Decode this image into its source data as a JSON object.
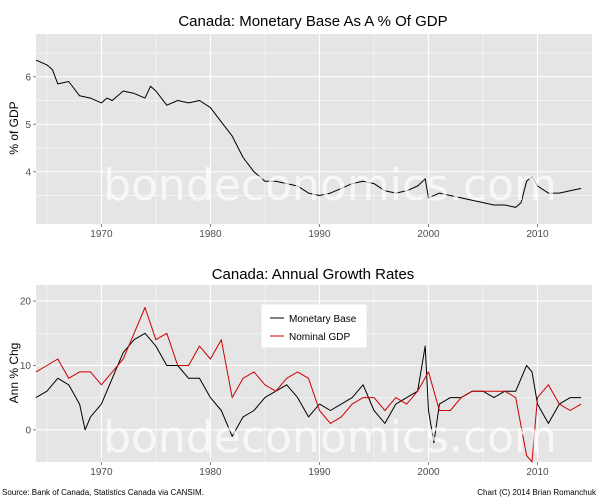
{
  "watermark": "bondeconomics.com",
  "footer": {
    "source": "Source: Bank of Canada, Statistics Canada via CANSIM.",
    "credit": "Chart (C) 2014 Brian Romanchuk"
  },
  "colors": {
    "panel_bg": "#e5e5e5",
    "grid": "#ffffff",
    "monetary_base": "#000000",
    "nominal_gdp": "#cc0000"
  },
  "chart_data": [
    {
      "type": "line",
      "title": "Canada: Monetary Base As A % Of GDP",
      "xlabel": "",
      "ylabel": "% of GDP",
      "xlim": [
        1964,
        2015
      ],
      "ylim": [
        2.9,
        6.9
      ],
      "xticks": [
        1970,
        1980,
        1990,
        2000,
        2010
      ],
      "yticks": [
        4,
        5,
        6
      ],
      "grid": true,
      "series": [
        {
          "name": "Monetary Base % of GDP",
          "color": "#000000",
          "points": [
            [
              1964.0,
              6.35
            ],
            [
              1965.0,
              6.25
            ],
            [
              1965.5,
              6.15
            ],
            [
              1966.0,
              5.85
            ],
            [
              1967.0,
              5.9
            ],
            [
              1968.0,
              5.6
            ],
            [
              1969.0,
              5.55
            ],
            [
              1970.0,
              5.45
            ],
            [
              1970.5,
              5.55
            ],
            [
              1971.0,
              5.5
            ],
            [
              1972.0,
              5.7
            ],
            [
              1973.0,
              5.65
            ],
            [
              1974.0,
              5.55
            ],
            [
              1974.5,
              5.8
            ],
            [
              1975.0,
              5.7
            ],
            [
              1976.0,
              5.4
            ],
            [
              1977.0,
              5.5
            ],
            [
              1978.0,
              5.45
            ],
            [
              1979.0,
              5.5
            ],
            [
              1980.0,
              5.35
            ],
            [
              1981.0,
              5.05
            ],
            [
              1982.0,
              4.75
            ],
            [
              1983.0,
              4.3
            ],
            [
              1984.0,
              4.0
            ],
            [
              1985.0,
              3.8
            ],
            [
              1986.0,
              3.8
            ],
            [
              1987.0,
              3.75
            ],
            [
              1988.0,
              3.7
            ],
            [
              1989.0,
              3.55
            ],
            [
              1990.0,
              3.5
            ],
            [
              1991.0,
              3.55
            ],
            [
              1992.0,
              3.65
            ],
            [
              1993.0,
              3.75
            ],
            [
              1994.0,
              3.8
            ],
            [
              1995.0,
              3.75
            ],
            [
              1996.0,
              3.6
            ],
            [
              1997.0,
              3.55
            ],
            [
              1998.0,
              3.6
            ],
            [
              1999.0,
              3.7
            ],
            [
              1999.7,
              3.85
            ],
            [
              2000.0,
              3.45
            ],
            [
              2001.0,
              3.55
            ],
            [
              2002.0,
              3.5
            ],
            [
              2003.0,
              3.45
            ],
            [
              2004.0,
              3.4
            ],
            [
              2005.0,
              3.35
            ],
            [
              2006.0,
              3.3
            ],
            [
              2007.0,
              3.3
            ],
            [
              2008.0,
              3.25
            ],
            [
              2008.5,
              3.35
            ],
            [
              2009.0,
              3.8
            ],
            [
              2009.5,
              3.9
            ],
            [
              2010.0,
              3.7
            ],
            [
              2011.0,
              3.55
            ],
            [
              2012.0,
              3.55
            ],
            [
              2013.0,
              3.6
            ],
            [
              2014.0,
              3.65
            ]
          ]
        }
      ]
    },
    {
      "type": "line",
      "title": "Canada: Annual Growth Rates",
      "xlabel": "",
      "ylabel": "Ann % Chg",
      "xlim": [
        1964,
        2015
      ],
      "ylim": [
        -5,
        22.5
      ],
      "xticks": [
        1970,
        1980,
        1990,
        2000,
        2010
      ],
      "yticks": [
        0,
        10,
        20
      ],
      "grid": true,
      "legend": {
        "position": "top-center",
        "entries": [
          "Monetary Base",
          "Nominal GDP"
        ]
      },
      "series": [
        {
          "name": "Monetary Base",
          "color": "#000000",
          "points": [
            [
              1964.0,
              5
            ],
            [
              1965.0,
              6
            ],
            [
              1966.0,
              8
            ],
            [
              1967.0,
              7
            ],
            [
              1968.0,
              4
            ],
            [
              1968.5,
              0
            ],
            [
              1969.0,
              2
            ],
            [
              1970.0,
              4
            ],
            [
              1971.0,
              8
            ],
            [
              1972.0,
              12
            ],
            [
              1973.0,
              14
            ],
            [
              1974.0,
              15
            ],
            [
              1975.0,
              13
            ],
            [
              1976.0,
              10
            ],
            [
              1977.0,
              10
            ],
            [
              1978.0,
              8
            ],
            [
              1979.0,
              8
            ],
            [
              1980.0,
              5
            ],
            [
              1981.0,
              3
            ],
            [
              1982.0,
              -1
            ],
            [
              1983.0,
              2
            ],
            [
              1984.0,
              3
            ],
            [
              1985.0,
              5
            ],
            [
              1986.0,
              6
            ],
            [
              1987.0,
              7
            ],
            [
              1988.0,
              5
            ],
            [
              1989.0,
              2
            ],
            [
              1990.0,
              4
            ],
            [
              1991.0,
              3
            ],
            [
              1992.0,
              4
            ],
            [
              1993.0,
              5
            ],
            [
              1994.0,
              7
            ],
            [
              1995.0,
              3
            ],
            [
              1996.0,
              1
            ],
            [
              1997.0,
              4
            ],
            [
              1998.0,
              5
            ],
            [
              1999.0,
              6
            ],
            [
              1999.7,
              13
            ],
            [
              2000.0,
              3
            ],
            [
              2000.5,
              -2
            ],
            [
              2001.0,
              4
            ],
            [
              2002.0,
              5
            ],
            [
              2003.0,
              5
            ],
            [
              2004.0,
              6
            ],
            [
              2005.0,
              6
            ],
            [
              2006.0,
              5
            ],
            [
              2007.0,
              6
            ],
            [
              2008.0,
              6
            ],
            [
              2009.0,
              10
            ],
            [
              2009.5,
              9
            ],
            [
              2010.0,
              4
            ],
            [
              2011.0,
              1
            ],
            [
              2012.0,
              4
            ],
            [
              2013.0,
              5
            ],
            [
              2014.0,
              5
            ]
          ]
        },
        {
          "name": "Nominal GDP",
          "color": "#cc0000",
          "points": [
            [
              1964.0,
              9
            ],
            [
              1965.0,
              10
            ],
            [
              1966.0,
              11
            ],
            [
              1967.0,
              8
            ],
            [
              1968.0,
              9
            ],
            [
              1969.0,
              9
            ],
            [
              1970.0,
              7
            ],
            [
              1971.0,
              9
            ],
            [
              1972.0,
              11
            ],
            [
              1973.0,
              15
            ],
            [
              1974.0,
              19
            ],
            [
              1975.0,
              14
            ],
            [
              1976.0,
              15
            ],
            [
              1977.0,
              10
            ],
            [
              1978.0,
              10
            ],
            [
              1979.0,
              13
            ],
            [
              1980.0,
              11
            ],
            [
              1981.0,
              14
            ],
            [
              1982.0,
              5
            ],
            [
              1983.0,
              8
            ],
            [
              1984.0,
              9
            ],
            [
              1985.0,
              7
            ],
            [
              1986.0,
              6
            ],
            [
              1987.0,
              8
            ],
            [
              1988.0,
              9
            ],
            [
              1989.0,
              8
            ],
            [
              1990.0,
              3
            ],
            [
              1991.0,
              1
            ],
            [
              1992.0,
              2
            ],
            [
              1993.0,
              4
            ],
            [
              1994.0,
              5
            ],
            [
              1995.0,
              5
            ],
            [
              1996.0,
              3
            ],
            [
              1997.0,
              5
            ],
            [
              1998.0,
              4
            ],
            [
              1999.0,
              6
            ],
            [
              2000.0,
              9
            ],
            [
              2001.0,
              3
            ],
            [
              2002.0,
              3
            ],
            [
              2003.0,
              5
            ],
            [
              2004.0,
              6
            ],
            [
              2005.0,
              6
            ],
            [
              2006.0,
              6
            ],
            [
              2007.0,
              6
            ],
            [
              2008.0,
              5
            ],
            [
              2009.0,
              -4
            ],
            [
              2009.5,
              -5
            ],
            [
              2010.0,
              5
            ],
            [
              2011.0,
              7
            ],
            [
              2012.0,
              4
            ],
            [
              2013.0,
              3
            ],
            [
              2014.0,
              4
            ]
          ]
        }
      ]
    }
  ]
}
